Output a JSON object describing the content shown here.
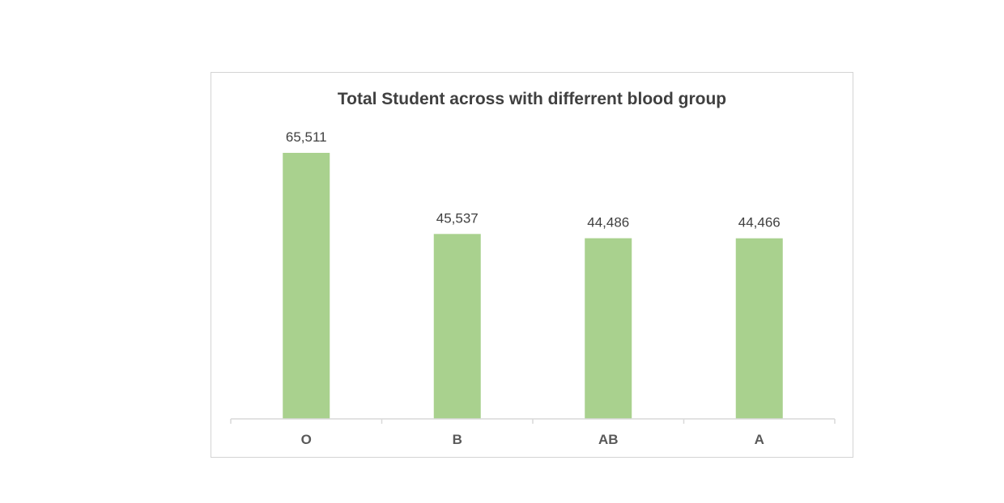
{
  "chart_data": {
    "type": "bar",
    "title": "Total Student across with differrent blood group",
    "categories": [
      "O",
      "B",
      "AB",
      "A"
    ],
    "values": [
      65511,
      45537,
      44486,
      44466
    ],
    "data_labels": [
      "65,511",
      "45,537",
      "44,486",
      "44,466"
    ],
    "xlabel": "",
    "ylabel": "",
    "ylim": [
      0,
      65511
    ],
    "grid": false,
    "legend": "none",
    "bar_color": "#a9d18e",
    "axis_color": "#d9d9d9"
  }
}
